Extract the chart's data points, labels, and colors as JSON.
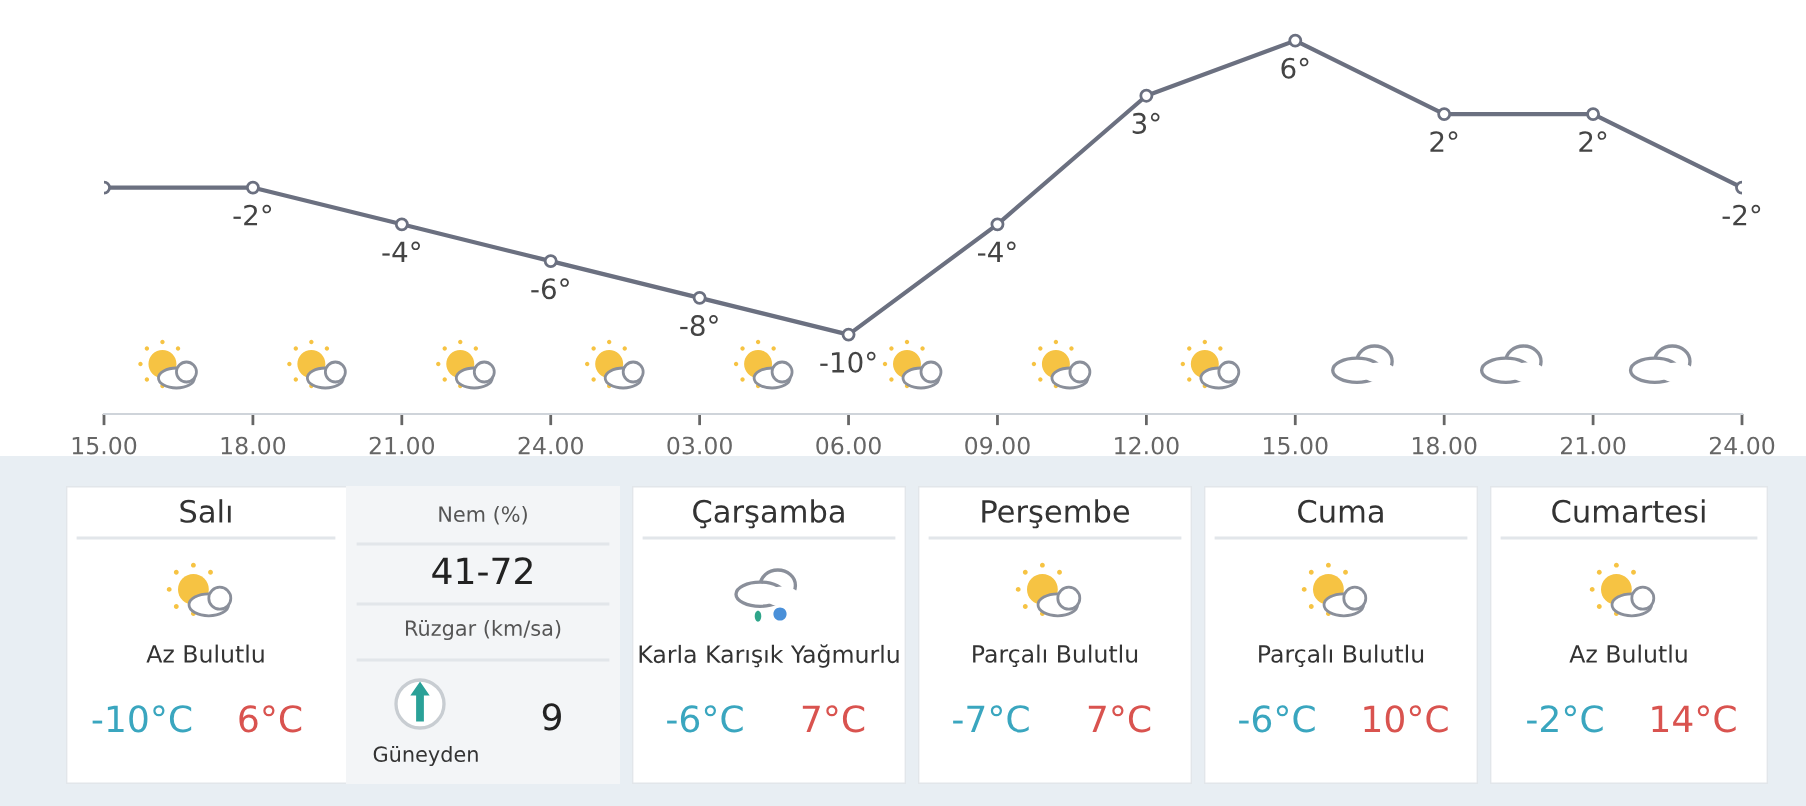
{
  "chart_data": [
    {
      "type": "line",
      "categories": [
        "15.00",
        "18.00",
        "21.00",
        "24.00",
        "03.00",
        "06.00",
        "09.00",
        "12.00",
        "15.00",
        "18.00",
        "21.00",
        "24.00"
      ],
      "series": [
        {
          "color": "#6b7080",
          "values": [
            -2,
            -2,
            -4,
            -6,
            -8,
            -10,
            -4,
            3,
            6,
            2,
            2,
            -2
          ],
          "value_labels": [
            null,
            "-2°",
            "-4°",
            "-6°",
            "-8°",
            "-10°",
            "-4°",
            "3°",
            "6°",
            "2°",
            "2°",
            "-2°"
          ]
        }
      ],
      "marker": "circle",
      "line_style": "solid",
      "tick_labels": "x",
      "grid": false,
      "legend": false
    },
    {
      "type": "other",
      "title": "Salı",
      "annotations": [
        "Az Bulutlu",
        "-10°C",
        "6°C",
        "Nem (%)",
        "41-72",
        "Rüzgar (km/sa)",
        "9",
        "Güneyden"
      ]
    },
    {
      "type": "other",
      "title": "Çarşamba",
      "annotations": [
        "Karla Karışık Yağmurlu",
        "-6°C",
        "7°C"
      ]
    },
    {
      "type": "other",
      "title": "Perşembe",
      "annotations": [
        "Parçalı Bulutlu",
        "-7°C",
        "7°C"
      ]
    },
    {
      "type": "other",
      "title": "Cuma",
      "annotations": [
        "Parçalı Bulutlu",
        "-6°C",
        "10°C"
      ]
    },
    {
      "type": "other",
      "title": "Cumartesi",
      "annotations": [
        "Az Bulutlu",
        "-2°C",
        "14°C"
      ]
    }
  ]
}
